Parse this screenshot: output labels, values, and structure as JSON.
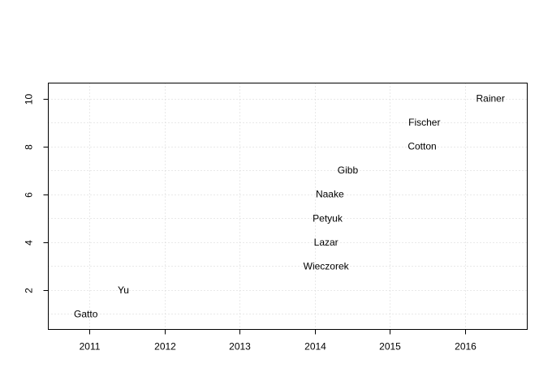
{
  "chart_data": {
    "type": "scatter",
    "title": "",
    "xlabel": "",
    "ylabel": "",
    "xlim": [
      2010.45,
      2016.83
    ],
    "ylim": [
      0.35,
      10.65
    ],
    "xticks": [
      2011,
      2012,
      2013,
      2014,
      2015,
      2016
    ],
    "yticks": [
      2,
      4,
      6,
      8,
      10
    ],
    "grid": true,
    "points": [
      {
        "x": 2010.95,
        "y": 1,
        "label": "Gatto"
      },
      {
        "x": 2011.45,
        "y": 2,
        "label": "Yu"
      },
      {
        "x": 2014.15,
        "y": 3,
        "label": "Wieczorek"
      },
      {
        "x": 2014.15,
        "y": 4,
        "label": "Lazar"
      },
      {
        "x": 2014.17,
        "y": 5,
        "label": "Petyuk"
      },
      {
        "x": 2014.2,
        "y": 6,
        "label": "Naake"
      },
      {
        "x": 2014.44,
        "y": 7,
        "label": "Gibb"
      },
      {
        "x": 2015.43,
        "y": 8,
        "label": "Cotton"
      },
      {
        "x": 2015.46,
        "y": 9,
        "label": "Fischer"
      },
      {
        "x": 2016.34,
        "y": 10,
        "label": "Rainer"
      }
    ]
  }
}
